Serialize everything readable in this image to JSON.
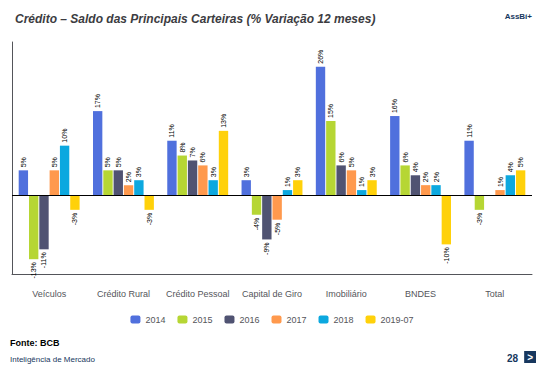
{
  "chart_data": {
    "type": "bar",
    "title": "Crédito – Saldo das Principais Carteiras (% Variação 12 meses)",
    "categories": [
      "Veículos",
      "Crédito Rural",
      "Crédito Pessoal",
      "Capital de Giro",
      "Imobiliário",
      "BNDES",
      "Total"
    ],
    "series": [
      {
        "name": "2014",
        "values": [
          5,
          17,
          11,
          3,
          26,
          16,
          11
        ],
        "value_labels": [
          "5%",
          "17%",
          "11%",
          "3%",
          "26%",
          "16%",
          "11%"
        ]
      },
      {
        "name": "2015",
        "values": [
          -13,
          5,
          8,
          -4,
          15,
          6,
          -3
        ],
        "value_labels": [
          "-13%",
          "5%",
          "8%",
          "-4%",
          "15%",
          "6%",
          "-3%"
        ]
      },
      {
        "name": "2016",
        "values": [
          -11,
          5,
          7,
          -9,
          6,
          4,
          0
        ],
        "value_labels": [
          "-11%",
          "5%",
          "7%",
          "-9%",
          "6%",
          "4%",
          null
        ]
      },
      {
        "name": "2017",
        "values": [
          5,
          2,
          6,
          -5,
          5,
          2,
          1
        ],
        "value_labels": [
          "5%",
          "2%",
          "6%",
          "-5%",
          "5%",
          "2%",
          "1%"
        ]
      },
      {
        "name": "2018",
        "values": [
          10,
          3,
          3,
          1,
          1,
          2,
          4
        ],
        "value_labels": [
          "10%",
          "3%",
          "3%",
          "1%",
          "1%",
          "2%",
          "4%"
        ]
      },
      {
        "name": "2019-07",
        "values": [
          -3,
          -3,
          13,
          3,
          3,
          -10,
          5
        ],
        "value_labels": [
          "-3%",
          "-3%",
          "13%",
          "3%",
          "3%",
          "-10%",
          "5%"
        ]
      }
    ],
    "ylim": [
      -16,
      31
    ],
    "grid": false,
    "legend": "bottom",
    "data_labels": true,
    "tick_labels": "x",
    "annotations": [
      "Fonte: BCB",
      "Inteligência de Mercado",
      "28",
      "AssBí+",
      ">"
    ]
  }
}
